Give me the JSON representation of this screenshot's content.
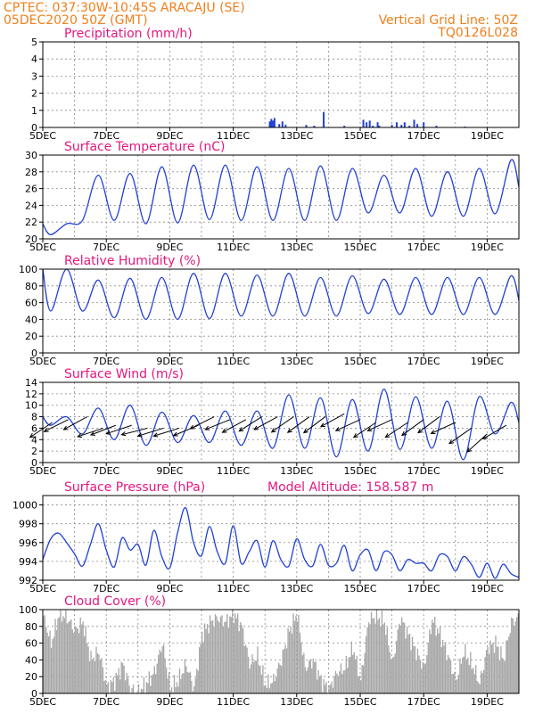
{
  "header": {
    "left_line1": "CPTEC:   037:30W-10:45S   ARACAJU (SE)",
    "left_line2": "05DEC2020 50Z (GMT)",
    "right_line1": "Vertical Grid Line: 50Z",
    "right_line2": "TQ0126L028"
  },
  "colors": {
    "header": "#f07f1b",
    "panel_title": "#e5177e",
    "series": "#2141d4",
    "cloud": "#a8a8a8",
    "wind_vector": "#000000"
  },
  "chart_data": [
    {
      "id": "precip",
      "type": "bar",
      "title": "Precipitation (mm/h)",
      "x_tick_labels": [
        "5DEC",
        "7DEC",
        "9DEC",
        "11DEC",
        "13DEC",
        "15DEC",
        "17DEC",
        "19DEC"
      ],
      "x_range_days": [
        5,
        20
      ],
      "ylim": [
        0,
        5
      ],
      "y_ticks": [
        0,
        1,
        2,
        3,
        4,
        5
      ],
      "grid": true,
      "series": [
        {
          "x": [
            5.2,
            6.6,
            9.3,
            12.15,
            12.2,
            12.25,
            12.3,
            12.45,
            12.55,
            12.65,
            13.3,
            13.55,
            13.85,
            14.5,
            15.1,
            15.2,
            15.3,
            15.4,
            15.55,
            15.6,
            16.0,
            16.15,
            16.3,
            16.4,
            16.55,
            16.7,
            16.8,
            17.0,
            17.4,
            18.3
          ],
          "values": [
            0.03,
            0.02,
            0.03,
            0.35,
            0.5,
            0.4,
            0.55,
            0.2,
            0.35,
            0.15,
            0.15,
            0.1,
            0.9,
            0.1,
            0.45,
            0.3,
            0.4,
            0.1,
            0.3,
            0.1,
            0.15,
            0.3,
            0.15,
            0.3,
            0.1,
            0.45,
            0.2,
            0.3,
            0.1,
            0.05
          ]
        }
      ]
    },
    {
      "id": "temp",
      "type": "line",
      "title": "Surface Temperature (nC)",
      "x_tick_labels": [
        "5DEC",
        "7DEC",
        "9DEC",
        "11DEC",
        "13DEC",
        "15DEC",
        "17DEC",
        "19DEC"
      ],
      "x_range_days": [
        5,
        20
      ],
      "ylim": [
        20,
        30
      ],
      "y_ticks": [
        20,
        22,
        24,
        26,
        28,
        30
      ],
      "grid": true,
      "daily_cycle": {
        "days": [
          5,
          6,
          7,
          8,
          9,
          10,
          11,
          12,
          13,
          14,
          15,
          16,
          17,
          18,
          19
        ],
        "max": [
          21.8,
          27.6,
          27.8,
          28.6,
          28.8,
          28.8,
          28.6,
          28.4,
          28.7,
          28.4,
          27.6,
          28.4,
          28.0,
          28.4,
          29.4
        ],
        "min": [
          20.5,
          22.2,
          22.2,
          21.8,
          21.9,
          22.3,
          22.2,
          22.2,
          22.2,
          22.2,
          23.1,
          23.1,
          22.7,
          22.7,
          23.0
        ],
        "end_value": 26.2
      }
    },
    {
      "id": "rh",
      "type": "line",
      "title": "Relative Humidity (%)",
      "x_tick_labels": [
        "5DEC",
        "7DEC",
        "9DEC",
        "11DEC",
        "13DEC",
        "15DEC",
        "17DEC",
        "19DEC"
      ],
      "x_range_days": [
        5,
        20
      ],
      "ylim": [
        0,
        100
      ],
      "y_ticks": [
        0,
        20,
        40,
        60,
        80,
        100
      ],
      "grid": true,
      "daily_cycle": {
        "days": [
          5,
          6,
          7,
          8,
          9,
          10,
          11,
          12,
          13,
          14,
          15,
          16,
          17,
          18,
          19
        ],
        "max": [
          100,
          87,
          89,
          90,
          95,
          95,
          93,
          95,
          90,
          92,
          88,
          90,
          90,
          90,
          92
        ],
        "min": [
          50,
          50,
          42,
          40,
          40,
          41,
          44,
          44,
          44,
          44,
          47,
          46,
          46,
          46,
          46
        ],
        "end_value": 63
      }
    },
    {
      "id": "wind",
      "type": "line",
      "title": "Surface Wind (m/s)",
      "x_tick_labels": [
        "5DEC",
        "7DEC",
        "9DEC",
        "11DEC",
        "13DEC",
        "15DEC",
        "17DEC",
        "19DEC"
      ],
      "x_range_days": [
        5,
        20
      ],
      "ylim": [
        0,
        14
      ],
      "y_ticks": [
        0,
        2,
        4,
        6,
        8,
        10,
        12,
        14
      ],
      "grid": true,
      "daily_cycle": {
        "days": [
          5,
          6,
          7,
          8,
          9,
          10,
          11,
          12,
          13,
          14,
          15,
          16,
          17,
          18,
          19
        ],
        "max": [
          8,
          9.5,
          10,
          8.8,
          8.2,
          9.0,
          9.0,
          11.8,
          11.3,
          11.0,
          12.8,
          11.5,
          10.7,
          11.5,
          10.5
        ],
        "min": [
          6.5,
          5.0,
          4.0,
          3.0,
          3.5,
          3.5,
          3.0,
          2.5,
          2.5,
          1.0,
          2.0,
          2.3,
          2.5,
          0.5,
          5.0
        ],
        "end_value": 7
      },
      "vectors": {
        "x": [
          5.3,
          5.8,
          6.4,
          6.9,
          7.3,
          7.8,
          8.3,
          8.8,
          9.3,
          9.9,
          10.4,
          10.9,
          11.4,
          11.9,
          12.4,
          12.9,
          13.4,
          13.9,
          14.5,
          15.0,
          15.5,
          16.0,
          16.5,
          17.0,
          17.5,
          18.0,
          18.5,
          19.0,
          19.6
        ],
        "y_at": [
          7,
          7.5,
          8,
          6,
          6.5,
          6.5,
          6,
          6,
          6,
          6.5,
          8,
          7.5,
          7.5,
          8,
          8,
          8,
          8,
          8,
          8.5,
          7.5,
          7,
          7.5,
          7,
          7.5,
          8,
          7,
          6,
          5,
          6.5
        ],
        "dx": [
          1.2,
          1.2,
          1.1,
          1.2,
          1.3,
          1.2,
          1.2,
          1.3,
          1.3,
          1.2,
          1.0,
          1.0,
          1.1,
          1.1,
          1.1,
          1.0,
          1.1,
          1.2,
          1.1,
          1.1,
          1.2,
          1.3,
          1.2,
          1.1,
          1.2,
          1.1,
          1.0,
          1.1,
          1.2
        ],
        "dy": [
          0.8,
          0.6,
          0.6,
          0.4,
          0.5,
          0.4,
          0.3,
          0.4,
          0.4,
          0.5,
          0.5,
          0.4,
          0.6,
          0.7,
          0.6,
          0.7,
          0.8,
          0.9,
          0.6,
          0.5,
          0.8,
          0.6,
          0.8,
          0.8,
          0.9,
          0.5,
          0.7,
          1.0,
          0.7
        ]
      }
    },
    {
      "id": "pres",
      "type": "line",
      "title": "Surface Pressure (hPa)",
      "annotation": "Model Altitude: 158.587  m",
      "x_tick_labels": [
        "5DEC",
        "7DEC",
        "9DEC",
        "11DEC",
        "13DEC",
        "15DEC",
        "17DEC",
        "19DEC"
      ],
      "x_range_days": [
        5,
        20
      ],
      "ylim": [
        992,
        1001
      ],
      "y_ticks": [
        992,
        994,
        996,
        998,
        1000
      ],
      "grid": true,
      "x": [
        5.0,
        5.25,
        5.5,
        5.75,
        6.0,
        6.25,
        6.5,
        6.75,
        7.0,
        7.25,
        7.5,
        7.75,
        8.0,
        8.25,
        8.5,
        8.75,
        9.0,
        9.25,
        9.5,
        9.75,
        10.0,
        10.25,
        10.5,
        10.75,
        11.0,
        11.25,
        11.5,
        11.75,
        12.0,
        12.25,
        12.5,
        12.75,
        13.0,
        13.25,
        13.5,
        13.75,
        14.0,
        14.25,
        14.5,
        14.75,
        15.0,
        15.25,
        15.5,
        15.75,
        16.0,
        16.25,
        16.5,
        16.75,
        17.0,
        17.25,
        17.5,
        17.75,
        18.0,
        18.25,
        18.5,
        18.75,
        19.0,
        19.25,
        19.5,
        19.75,
        20.0
      ],
      "values": [
        994.2,
        996.4,
        997.0,
        996.0,
        994.8,
        993.5,
        995.8,
        998.0,
        995.2,
        993.4,
        996.5,
        995.2,
        995.8,
        993.6,
        997.3,
        994.5,
        993.3,
        997.1,
        999.7,
        996.0,
        994.6,
        997.7,
        995.0,
        993.8,
        997.8,
        993.8,
        995.0,
        996.2,
        993.4,
        996.2,
        994.2,
        993.5,
        996.4,
        994.2,
        993.5,
        995.8,
        993.6,
        993.8,
        995.7,
        993.0,
        994.7,
        995.2,
        993.0,
        995.0,
        994.7,
        993.0,
        994.2,
        993.8,
        993.8,
        993.0,
        994.7,
        994.5,
        993.0,
        994.5,
        993.7,
        992.3,
        993.8,
        992.2,
        993.7,
        992.7,
        992.3
      ]
    },
    {
      "id": "cloud",
      "type": "area",
      "title": "Cloud Cover (%)",
      "x_tick_labels": [
        "5DEC",
        "7DEC",
        "9DEC",
        "11DEC",
        "13DEC",
        "15DEC",
        "17DEC",
        "19DEC"
      ],
      "x_range_days": [
        5,
        20
      ],
      "ylim": [
        0,
        100
      ],
      "y_ticks": [
        0,
        20,
        40,
        60,
        80,
        100
      ],
      "grid": true,
      "x": [
        5.0,
        5.25,
        5.5,
        5.75,
        6.0,
        6.25,
        6.5,
        6.75,
        7.0,
        7.25,
        7.5,
        7.75,
        8.0,
        8.25,
        8.5,
        8.75,
        9.0,
        9.25,
        9.5,
        9.75,
        10.0,
        10.25,
        10.5,
        10.75,
        11.0,
        11.25,
        11.5,
        11.75,
        12.0,
        12.25,
        12.5,
        12.75,
        13.0,
        13.25,
        13.5,
        13.75,
        14.0,
        14.25,
        14.5,
        14.75,
        15.0,
        15.25,
        15.5,
        15.75,
        16.0,
        16.25,
        16.5,
        16.75,
        17.0,
        17.25,
        17.5,
        17.75,
        18.0,
        18.25,
        18.5,
        18.75,
        19.0,
        19.25,
        19.5,
        19.75,
        20.0
      ],
      "values": [
        92,
        60,
        95,
        90,
        75,
        85,
        40,
        50,
        8,
        15,
        35,
        5,
        2,
        12,
        25,
        60,
        6,
        15,
        35,
        5,
        70,
        85,
        90,
        85,
        95,
        80,
        35,
        45,
        10,
        15,
        40,
        75,
        95,
        30,
        40,
        15,
        5,
        25,
        30,
        55,
        15,
        88,
        92,
        85,
        35,
        90,
        70,
        50,
        30,
        88,
        70,
        45,
        15,
        50,
        35,
        12,
        55,
        60,
        40,
        85,
        90
      ]
    }
  ]
}
